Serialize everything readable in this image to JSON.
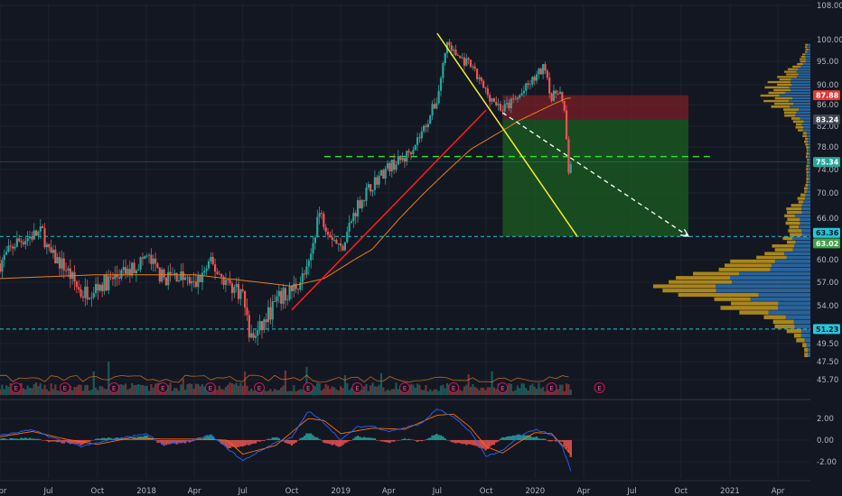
{
  "colors": {
    "background": "#131722",
    "grid": "#1e222d",
    "axis_text": "#b2b5be",
    "candle_up": "#26a69a",
    "candle_down": "#ef5350",
    "ma_line": "#e67e22",
    "red_trendline": "#ff1e1e",
    "yellow_trendline": "#f5ef2a",
    "projection_arrow": "#ffffff",
    "stop_zone": "#7a1f27",
    "target_zone": "#1b5e20",
    "dashed_cyan": "#26c6da",
    "dashed_green": "#33dd33",
    "volume_profile_blue": "#2c6ca7",
    "volume_profile_gold": "#c49a1c",
    "macd_line": "#2962ff",
    "signal_line": "#ff6d00",
    "hist_up": "#26a69a",
    "hist_down": "#ef5350"
  },
  "chart_data": [
    {
      "type": "line",
      "subtype": "candlestick-price-chart",
      "title": "",
      "xlabel": "",
      "ylabel": "",
      "x_ticks": [
        "Apr",
        "Jul",
        "Oct",
        "2018",
        "Apr",
        "Jul",
        "Oct",
        "2019",
        "Apr",
        "Jul",
        "Oct",
        "2020",
        "Apr",
        "Jul",
        "Oct",
        "2021",
        "Apr"
      ],
      "x_range": [
        "2017-04",
        "2021-06"
      ],
      "y_ticks": [
        "108.00",
        "100.00",
        "95.00",
        "90.00",
        "86.00",
        "82.00",
        "78.00",
        "74.00",
        "70.00",
        "66.00",
        "60.00",
        "57.00",
        "54.00",
        "49.50",
        "47.50",
        "45.70"
      ],
      "ylim": [
        45.7,
        108
      ],
      "price_path": [
        [
          "2017-04",
          59.5
        ],
        [
          "2017-05",
          62.5
        ],
        [
          "2017-06",
          63.5
        ],
        [
          "2017-06-20",
          64.0
        ],
        [
          "2017-07",
          61.0
        ],
        [
          "2017-08",
          59.0
        ],
        [
          "2017-09",
          55.5
        ],
        [
          "2017-10",
          56.5
        ],
        [
          "2017-11",
          57.5
        ],
        [
          "2017-12",
          58.5
        ],
        [
          "2018-01",
          60.5
        ],
        [
          "2018-02",
          57.5
        ],
        [
          "2018-03",
          58.0
        ],
        [
          "2018-04",
          56.5
        ],
        [
          "2018-05",
          59.5
        ],
        [
          "2018-06",
          57.0
        ],
        [
          "2018-07",
          55.5
        ],
        [
          "2018-07-15",
          50.0
        ],
        [
          "2018-08",
          51.0
        ],
        [
          "2018-09",
          54.5
        ],
        [
          "2018-10",
          56.0
        ],
        [
          "2018-11",
          58.5
        ],
        [
          "2018-11-20",
          67.0
        ],
        [
          "2018-12",
          65.5
        ],
        [
          "2019-01",
          61.5
        ],
        [
          "2019-02",
          68.0
        ],
        [
          "2019-03",
          71.5
        ],
        [
          "2019-04",
          74.5
        ],
        [
          "2019-05",
          76.0
        ],
        [
          "2019-06",
          80.5
        ],
        [
          "2019-07",
          87.0
        ],
        [
          "2019-07-20",
          99.5
        ],
        [
          "2019-08",
          97.0
        ],
        [
          "2019-09",
          94.0
        ],
        [
          "2019-10",
          88.5
        ],
        [
          "2019-11",
          85.0
        ],
        [
          "2019-12",
          87.5
        ],
        [
          "2020-01",
          91.5
        ],
        [
          "2020-01-20",
          94.0
        ],
        [
          "2020-02",
          87.0
        ],
        [
          "2020-02-15",
          89.5
        ],
        [
          "2020-02-25",
          84.0
        ],
        [
          "2020-03-01",
          78.0
        ],
        [
          "2020-03-05",
          72.5
        ],
        [
          "2020-03-08",
          75.3
        ]
      ],
      "moving_average": [
        [
          "2017-04",
          57.5
        ],
        [
          "2017-10",
          58.0
        ],
        [
          "2018-04",
          58.0
        ],
        [
          "2018-10",
          56.5
        ],
        [
          "2018-12",
          57.5
        ],
        [
          "2019-03",
          61.5
        ],
        [
          "2019-06",
          69.5
        ],
        [
          "2019-09",
          77.5
        ],
        [
          "2019-12",
          83.0
        ],
        [
          "2020-03",
          87.3
        ]
      ],
      "drawings": {
        "red_trendline": [
          [
            "2018-10",
            53.5
          ],
          [
            "2019-10",
            85.0
          ]
        ],
        "yellow_trendline": [
          [
            "2019-07",
            101.5
          ],
          [
            "2020-03-20",
            63.4
          ]
        ],
        "projection_arrow": [
          [
            "2019-11",
            84.5
          ],
          [
            "2020-10-15",
            63.4
          ]
        ],
        "stop_zone": {
          "from": "2019-11",
          "to": "2020-10-15",
          "low": 83.24,
          "high": 87.88
        },
        "target_zone": {
          "from": "2019-11",
          "to": "2020-10-15",
          "low": 63.36,
          "high": 83.24
        },
        "dashed_green_level": {
          "from": "2018-12",
          "to": "2020-12",
          "value": 76.3
        },
        "dashed_cyan_levels": [
          63.36,
          51.23
        ],
        "current_price_line": 75.34
      },
      "price_tags": [
        {
          "value": 87.88,
          "label": "87.88",
          "bg": "#e53935",
          "fg": "#ffffff"
        },
        {
          "value": 83.24,
          "label": "83.24",
          "bg": "#434651",
          "fg": "#ffffff"
        },
        {
          "value": 75.34,
          "label": "75.34",
          "bg": "#26a69a",
          "fg": "#ffffff"
        },
        {
          "value": 63.36,
          "label": "63.36",
          "bg": "#26c6da",
          "fg": "#131722"
        },
        {
          "value": 63.02,
          "label": "63.02",
          "bg": "#43a047",
          "fg": "#ffffff"
        },
        {
          "value": 51.23,
          "label": "51.23",
          "bg": "#26c6da",
          "fg": "#131722"
        }
      ],
      "earnings_markers": [
        "2017-05",
        "2017-08",
        "2017-11",
        "2018-02",
        "2018-05",
        "2018-08",
        "2018-11",
        "2019-02",
        "2019-05",
        "2019-08",
        "2019-11",
        "2020-02",
        "2020-05"
      ],
      "earnings_label": "E",
      "grid": true,
      "legend": "none"
    },
    {
      "type": "line",
      "subtype": "macd-indicator",
      "title": "",
      "y_ticks": [
        "2.00",
        "0.00",
        "-2.00"
      ],
      "ylim": [
        -2.8,
        3.0
      ],
      "macd": [
        [
          "2017-04",
          0.4
        ],
        [
          "2017-06",
          1.0
        ],
        [
          "2017-07",
          0.3
        ],
        [
          "2017-09",
          -0.6
        ],
        [
          "2017-11",
          0.1
        ],
        [
          "2018-01",
          0.6
        ],
        [
          "2018-02",
          -0.4
        ],
        [
          "2018-04",
          0.0
        ],
        [
          "2018-05",
          0.5
        ],
        [
          "2018-07",
          -1.9
        ],
        [
          "2018-09",
          -0.2
        ],
        [
          "2018-10",
          0.2
        ],
        [
          "2018-11",
          2.7
        ],
        [
          "2018-12",
          1.6
        ],
        [
          "2019-01",
          0.0
        ],
        [
          "2019-02",
          1.2
        ],
        [
          "2019-03",
          1.3
        ],
        [
          "2019-04",
          0.8
        ],
        [
          "2019-06",
          1.5
        ],
        [
          "2019-07",
          2.9
        ],
        [
          "2019-08",
          2.1
        ],
        [
          "2019-09",
          0.8
        ],
        [
          "2019-10",
          -1.5
        ],
        [
          "2019-11",
          -1.0
        ],
        [
          "2019-12",
          0.3
        ],
        [
          "2020-01",
          1.0
        ],
        [
          "2020-02",
          0.5
        ],
        [
          "2020-02-20",
          -0.5
        ],
        [
          "2020-03-08",
          -2.8
        ]
      ],
      "signal": [
        [
          "2017-04",
          0.3
        ],
        [
          "2017-06",
          0.8
        ],
        [
          "2017-08",
          0.1
        ],
        [
          "2017-10",
          -0.4
        ],
        [
          "2017-12",
          0.2
        ],
        [
          "2018-02",
          0.1
        ],
        [
          "2018-04",
          0.1
        ],
        [
          "2018-06",
          0.0
        ],
        [
          "2018-07",
          -1.3
        ],
        [
          "2018-09",
          -0.5
        ],
        [
          "2018-11",
          2.0
        ],
        [
          "2018-12",
          1.8
        ],
        [
          "2019-01",
          0.6
        ],
        [
          "2019-03",
          1.1
        ],
        [
          "2019-05",
          1.0
        ],
        [
          "2019-07",
          2.3
        ],
        [
          "2019-08",
          2.4
        ],
        [
          "2019-09",
          1.2
        ],
        [
          "2019-10",
          -0.6
        ],
        [
          "2019-11",
          -1.2
        ],
        [
          "2019-12",
          -0.2
        ],
        [
          "2020-01",
          0.7
        ],
        [
          "2020-02",
          0.6
        ],
        [
          "2020-03-08",
          -1.3
        ]
      ]
    }
  ]
}
